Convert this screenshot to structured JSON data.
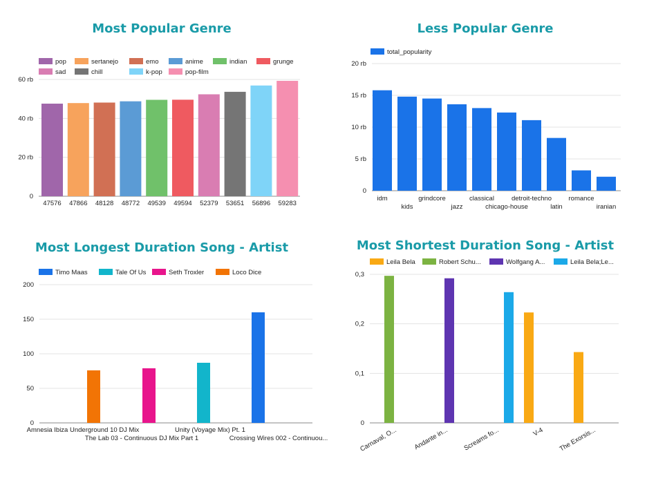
{
  "chart_data": [
    {
      "type": "bar",
      "title": "Most Popular Genre",
      "categories": [
        "pop",
        "sertanejo",
        "emo",
        "anime",
        "indian",
        "grunge",
        "sad",
        "chill",
        "k-pop",
        "pop-film"
      ],
      "x_labels": [
        "47576",
        "47866",
        "48128",
        "48772",
        "49539",
        "49594",
        "52379",
        "53651",
        "56896",
        "59283"
      ],
      "values": [
        47576,
        47866,
        48128,
        48772,
        49539,
        49594,
        52379,
        53651,
        56896,
        59283
      ],
      "colors": [
        "#a066aa",
        "#f7a35c",
        "#d17054",
        "#5b9bd5",
        "#70c16a",
        "#ef5a60",
        "#d97db2",
        "#757575",
        "#7fd4f8",
        "#f58fb0"
      ],
      "y_ticks": [
        "0",
        "20 rb",
        "40 rb",
        "60 rb"
      ],
      "ylim": [
        0,
        60000
      ],
      "grid": true,
      "legend": "top"
    },
    {
      "type": "bar",
      "title": "Less Popular Genre",
      "series_name": "total_popularity",
      "categories": [
        "idm",
        "kids",
        "grindcore",
        "jazz",
        "classical",
        "chicago-house",
        "detroit-techno",
        "latin",
        "romance",
        "iranian"
      ],
      "values": [
        15800,
        14800,
        14500,
        13600,
        13000,
        12300,
        11100,
        8300,
        3200,
        2200
      ],
      "color": "#1a73e8",
      "y_ticks": [
        "0",
        "5 rb",
        "10 rb",
        "15 rb",
        "20 rb"
      ],
      "ylim": [
        0,
        20000
      ],
      "grid": true,
      "legend": "top-left"
    },
    {
      "type": "bar",
      "title": "Most Longest Duration Song - Artist",
      "categories": [
        "Amnesia Ibiza Underground 10 DJ Mix",
        "The Lab 03 - Continuous DJ Mix Part 1",
        "Unity (Voyage Mix) Pt. 1",
        "Crossing Wires 002 - Continuou..."
      ],
      "series": [
        {
          "name": "Timo Maas",
          "color": "#1a73e8",
          "values": [
            null,
            null,
            null,
            160
          ]
        },
        {
          "name": "Tale Of Us",
          "color": "#12b5cb",
          "values": [
            null,
            null,
            87,
            null
          ]
        },
        {
          "name": "Seth Troxler",
          "color": "#e8158c",
          "values": [
            null,
            79,
            null,
            null
          ]
        },
        {
          "name": "Loco Dice",
          "color": "#f27405",
          "values": [
            76,
            null,
            null,
            null
          ]
        }
      ],
      "y_ticks": [
        "0",
        "50",
        "100",
        "150",
        "200"
      ],
      "ylim": [
        0,
        200
      ],
      "grid": true,
      "legend": "top"
    },
    {
      "type": "bar",
      "title": "Most Shortest Duration Song - Artist",
      "categories": [
        "Carnaval, O...",
        "Andante in...",
        "Screams fo...",
        "V-4",
        "The Exorsis..."
      ],
      "series": [
        {
          "name": "Leila Bela",
          "color": "#f9a914",
          "values": [
            null,
            null,
            null,
            0.223,
            0.143
          ]
        },
        {
          "name": "Robert Schu...",
          "color": "#7cb342",
          "values": [
            0.297,
            null,
            null,
            null,
            null
          ]
        },
        {
          "name": "Wolfgang A...",
          "color": "#5e35b1",
          "values": [
            null,
            0.292,
            null,
            null,
            null
          ]
        },
        {
          "name": "Leila Bela;Le...",
          "color": "#1ba9e8",
          "values": [
            null,
            null,
            0.264,
            null,
            null
          ]
        }
      ],
      "y_ticks": [
        "0",
        "0,1",
        "0,2",
        "0,3"
      ],
      "ylim": [
        0,
        0.3
      ],
      "grid": true,
      "legend": "top"
    }
  ]
}
